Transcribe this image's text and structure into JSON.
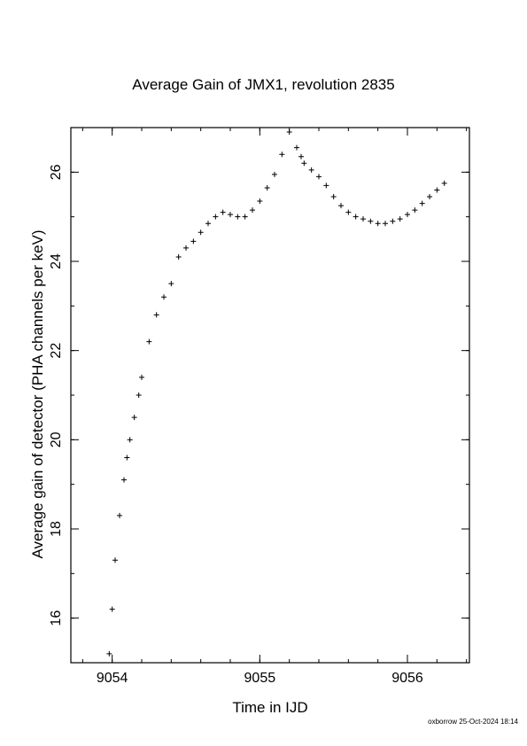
{
  "chart_data": {
    "type": "scatter",
    "title": "Average Gain of JMX1, revolution 2835",
    "xlabel": "Time in IJD",
    "ylabel": "Average gain of detector (PHA channels per keV)",
    "xlim": [
      9053.72,
      9056.42
    ],
    "ylim": [
      15.0,
      27.0
    ],
    "x_ticks": [
      9054,
      9055,
      9056
    ],
    "x_tick_labels": [
      "9054",
      "9055",
      "9056"
    ],
    "y_ticks": [
      16,
      18,
      20,
      22,
      24,
      26
    ],
    "y_tick_labels": [
      "16",
      "18",
      "20",
      "22",
      "24",
      "26"
    ],
    "grid": false,
    "marker": "plus",
    "marker_color": "#000000",
    "series": [
      {
        "x": [
          9053.98,
          9054.0,
          9054.02,
          9054.05,
          9054.08,
          9054.1,
          9054.12,
          9054.15,
          9054.18,
          9054.2,
          9054.25,
          9054.3,
          9054.35,
          9054.4,
          9054.45,
          9054.5,
          9054.55,
          9054.6,
          9054.65,
          9054.7,
          9054.75,
          9054.8,
          9054.85,
          9054.9,
          9054.95,
          9055.0,
          9055.05,
          9055.1,
          9055.15,
          9055.2,
          9055.25,
          9055.28,
          9055.3,
          9055.35,
          9055.4,
          9055.45,
          9055.5,
          9055.55,
          9055.6,
          9055.65,
          9055.7,
          9055.75,
          9055.8,
          9055.85,
          9055.9,
          9055.95,
          9056.0,
          9056.05,
          9056.1,
          9056.15,
          9056.2,
          9056.25
        ],
        "y": [
          15.2,
          16.2,
          17.3,
          18.3,
          19.1,
          19.6,
          20.0,
          20.5,
          21.0,
          21.4,
          22.2,
          22.8,
          23.2,
          23.5,
          24.1,
          24.3,
          24.45,
          24.65,
          24.85,
          25.0,
          25.1,
          25.05,
          25.0,
          25.0,
          25.15,
          25.35,
          25.65,
          25.95,
          26.4,
          26.9,
          26.55,
          26.35,
          26.2,
          26.05,
          25.9,
          25.7,
          25.45,
          25.25,
          25.1,
          25.0,
          24.95,
          24.9,
          24.85,
          24.85,
          24.9,
          24.95,
          25.05,
          25.15,
          25.3,
          25.45,
          25.6,
          25.75
        ]
      }
    ]
  },
  "footer": "oxborrow 25-Oct-2024 18:14"
}
